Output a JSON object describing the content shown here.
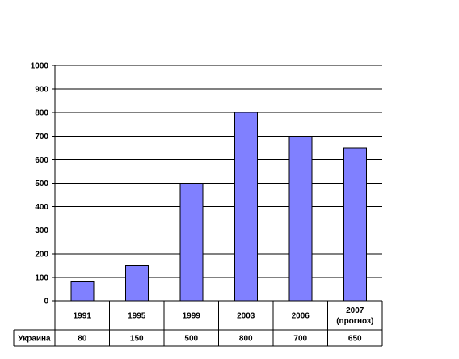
{
  "chart_data": {
    "type": "bar",
    "categories": [
      "1991",
      "1995",
      "1999",
      "2003",
      "2006",
      "2007\n(прогноз)"
    ],
    "series": [
      {
        "name": "Украина",
        "values": [
          80,
          150,
          500,
          800,
          700,
          650
        ],
        "color": "#8080ff"
      }
    ],
    "value_labels": [
      "80",
      "150",
      "500",
      "800",
      "700",
      "650"
    ],
    "ylim": [
      0,
      1000
    ],
    "yticks": [
      0,
      100,
      200,
      300,
      400,
      500,
      600,
      700,
      800,
      900,
      1000
    ],
    "grid": true,
    "legend": "data-table-row",
    "title": "",
    "xlabel": "",
    "ylabel": ""
  }
}
